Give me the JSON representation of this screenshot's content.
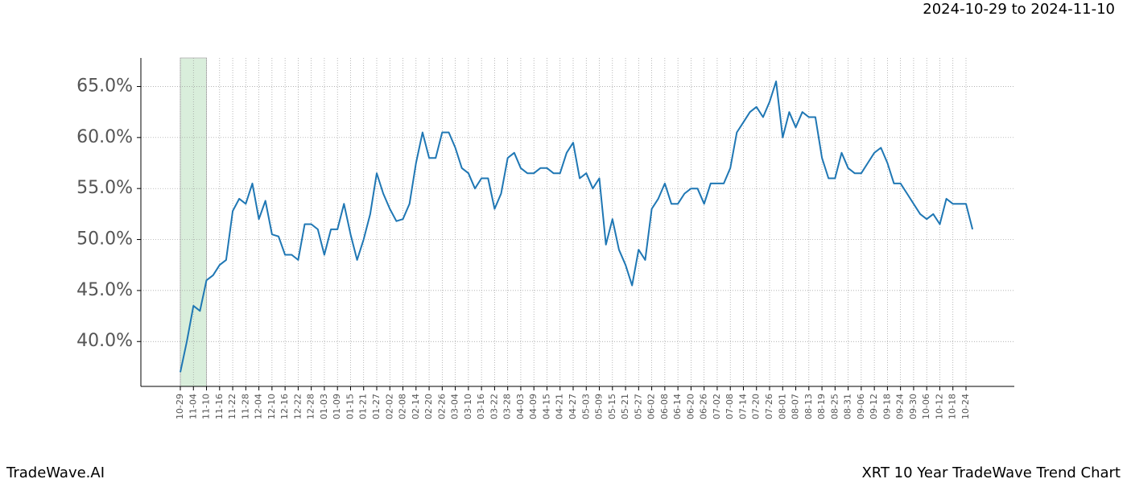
{
  "chart_data": {
    "type": "line",
    "title": "2024-10-29 to 2024-11-10",
    "footer_left": "TradeWave.AI",
    "footer_right": "XRT 10 Year TradeWave Trend Chart",
    "categories": [
      "10-29",
      null,
      "11-04",
      null,
      "11-10",
      null,
      "11-16",
      null,
      "11-22",
      null,
      "11-28",
      null,
      "12-04",
      null,
      "12-10",
      null,
      "12-16",
      null,
      "12-22",
      null,
      "12-28",
      null,
      "01-03",
      null,
      "01-09",
      null,
      "01-15",
      null,
      "01-21",
      null,
      "01-27",
      null,
      "02-02",
      null,
      "02-08",
      null,
      "02-14",
      null,
      "02-20",
      null,
      "02-26",
      null,
      "03-04",
      null,
      "03-10",
      null,
      "03-16",
      null,
      "03-22",
      null,
      "03-28",
      null,
      "04-03",
      null,
      "04-09",
      null,
      "04-15",
      null,
      "04-21",
      null,
      "04-27",
      null,
      "05-03",
      null,
      "05-09",
      null,
      "05-15",
      null,
      "05-21",
      null,
      "05-27",
      null,
      "06-02",
      null,
      "06-08",
      null,
      "06-14",
      null,
      "06-20",
      null,
      "06-26",
      null,
      "07-02",
      null,
      "07-08",
      null,
      "07-14",
      null,
      "07-20",
      null,
      "07-26",
      null,
      "08-01",
      null,
      "08-07",
      null,
      "08-13",
      null,
      "08-19",
      null,
      "08-25",
      null,
      "08-31",
      null,
      "09-06",
      null,
      "09-12",
      null,
      "09-18",
      null,
      "09-24",
      null,
      "09-30",
      null,
      "10-06",
      null,
      "10-12",
      null,
      "10-18",
      null,
      "10-24",
      null
    ],
    "series": [
      {
        "color": "#1f77b4",
        "values": [
          37.0,
          40.0,
          43.5,
          43.0,
          46.0,
          46.5,
          47.5,
          48.0,
          52.8,
          54.0,
          53.5,
          55.5,
          52.0,
          53.8,
          50.5,
          50.3,
          48.5,
          48.5,
          48.0,
          51.5,
          51.5,
          51.0,
          48.5,
          51.0,
          51.0,
          53.5,
          50.5,
          48.0,
          50.0,
          52.5,
          56.5,
          54.5,
          53.0,
          51.8,
          52.0,
          53.5,
          57.5,
          60.5,
          58.0,
          58.0,
          60.5,
          60.5,
          59.0,
          57.0,
          56.5,
          55.0,
          56.0,
          56.0,
          53.0,
          54.5,
          58.0,
          58.5,
          57.0,
          56.5,
          56.5,
          57.0,
          57.0,
          56.5,
          56.5,
          58.5,
          59.5,
          56.0,
          56.5,
          55.0,
          56.0,
          49.5,
          52.0,
          49.0,
          47.5,
          45.5,
          49.0,
          48.0,
          53.0,
          54.0,
          55.5,
          53.5,
          53.5,
          54.5,
          55.0,
          55.0,
          53.5,
          55.5,
          55.5,
          55.5,
          57.0,
          60.5,
          61.5,
          62.5,
          63.0,
          62.0,
          63.5,
          65.5,
          60.0,
          62.5,
          61.0,
          62.5,
          62.0,
          62.0,
          58.0,
          56.0,
          56.0,
          58.5,
          57.0,
          56.5,
          56.5,
          57.5,
          58.5,
          59.0,
          57.5,
          55.5,
          55.5,
          54.5,
          53.5,
          52.5,
          52.0,
          52.5,
          51.5,
          54.0,
          53.5,
          53.5,
          53.5,
          51.0
        ]
      }
    ],
    "ylim": [
      35.6,
      67.8
    ],
    "yticks": [
      {
        "value": 40,
        "label": "40.0%"
      },
      {
        "value": 45,
        "label": "45.0%"
      },
      {
        "value": 50,
        "label": "50.0%"
      },
      {
        "value": 55,
        "label": "55.0%"
      },
      {
        "value": 60,
        "label": "60.0%"
      },
      {
        "value": 65,
        "label": "65.0%"
      }
    ],
    "grid": true,
    "shaded_span": {
      "from": "10-29",
      "to": "11-10",
      "color": "#d9eedb"
    }
  }
}
